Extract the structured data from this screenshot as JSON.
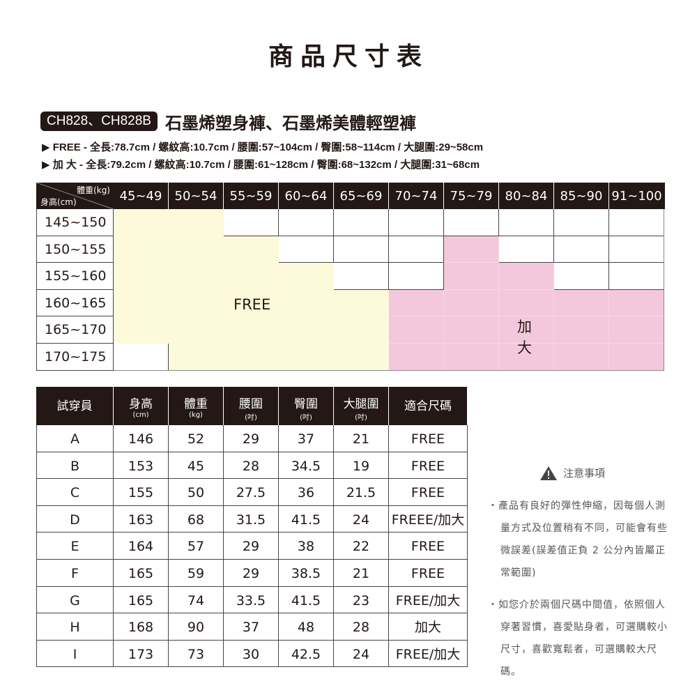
{
  "title": "商品尺寸表",
  "product": {
    "code": "CH828、CH828B",
    "name": "石墨烯塑身褲、石墨烯美體輕塑褲"
  },
  "specs": [
    "▶ FREE - 全長:78.7cm / 螺紋高:10.7cm / 腰圍:57~104cm / 臀圍:58~114cm / 大腿圍:29~58cm",
    "▶ 加  大 - 全長:79.2cm / 螺紋高:10.7cm / 腰圍:61~128cm / 臀圍:68~132cm / 大腿圍:31~68cm"
  ],
  "size_grid": {
    "corner_weight": "體重(kg)",
    "corner_height": "身高(cm)",
    "weights": [
      "45~49",
      "50~54",
      "55~59",
      "60~64",
      "65~69",
      "70~74",
      "75~79",
      "80~84",
      "85~90",
      "91~100"
    ],
    "heights": [
      "145~150",
      "150~155",
      "155~160",
      "160~165",
      "165~170",
      "170~175"
    ],
    "zones": [
      [
        "F",
        "F",
        "",
        "",
        "",
        "",
        "",
        "",
        "",
        ""
      ],
      [
        "F",
        "F",
        "F",
        "",
        "",
        "",
        "P",
        "",
        "",
        ""
      ],
      [
        "F",
        "F",
        "F",
        "F",
        "",
        "",
        "P",
        "P",
        "",
        ""
      ],
      [
        "F",
        "F",
        "F",
        "F",
        "F",
        "P",
        "P",
        "P",
        "P",
        "P"
      ],
      [
        "F",
        "F",
        "F",
        "F",
        "F",
        "P",
        "P",
        "P",
        "P",
        "P"
      ],
      [
        "",
        "F",
        "F",
        "F",
        "F",
        "P",
        "P",
        "P",
        "P",
        "P"
      ]
    ],
    "free_label": "FREE",
    "plus_label": "加大",
    "colors": {
      "free": "#fdfadb",
      "plus": "#f4c8dc",
      "header": "#231815"
    }
  },
  "fit_table": {
    "headers": [
      {
        "main": "試穿員",
        "unit": ""
      },
      {
        "main": "身高",
        "unit": "(cm)"
      },
      {
        "main": "體重",
        "unit": "(kg)"
      },
      {
        "main": "腰圍",
        "unit": "(吋)"
      },
      {
        "main": "臀圍",
        "unit": "(吋)"
      },
      {
        "main": "大腿圍",
        "unit": "(吋)"
      },
      {
        "main": "適合尺碼",
        "unit": ""
      }
    ],
    "rows": [
      [
        "A",
        "146",
        "52",
        "29",
        "37",
        "21",
        "FREE"
      ],
      [
        "B",
        "153",
        "45",
        "28",
        "34.5",
        "19",
        "FREE"
      ],
      [
        "C",
        "155",
        "50",
        "27.5",
        "36",
        "21.5",
        "FREE"
      ],
      [
        "D",
        "163",
        "68",
        "31.5",
        "41.5",
        "24",
        "FREEE/加大"
      ],
      [
        "E",
        "164",
        "57",
        "29",
        "38",
        "22",
        "FREE"
      ],
      [
        "F",
        "165",
        "59",
        "29",
        "38.5",
        "21",
        "FREE"
      ],
      [
        "G",
        "165",
        "74",
        "33.5",
        "41.5",
        "23",
        "FREE/加大"
      ],
      [
        "H",
        "168",
        "90",
        "37",
        "48",
        "28",
        "加大"
      ],
      [
        "I",
        "173",
        "73",
        "30",
        "42.5",
        "24",
        "FREE/加大"
      ]
    ]
  },
  "notes": {
    "heading": "注意事項",
    "icon": "warning-icon",
    "items": [
      "・產品有良好的彈性伸縮，因每個人測量方式及位置稍有不同，可能會有些微誤差(誤差值正負 2 公分內皆屬正常範圍)",
      "・如您介於兩個尺碼中間值，依照個人穿著習慣，喜愛貼身者，可選購較小尺寸，喜歡寬鬆者，可選購較大尺碼。"
    ]
  }
}
